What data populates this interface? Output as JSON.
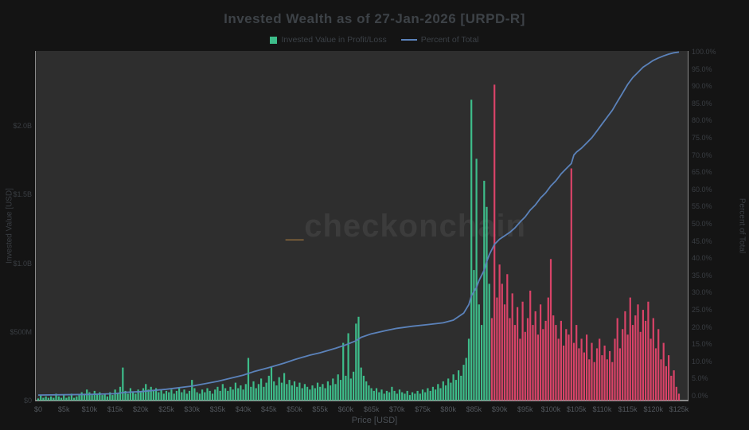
{
  "title": "Invested Wealth as of 27-Jan-2026 [URPD-R]",
  "legend": {
    "profit": {
      "label": "Invested Value in Profit/Loss",
      "color": "#3dbd8a"
    },
    "percent": {
      "label": "Percent of Total",
      "color": "#5b82ba"
    }
  },
  "watermark": {
    "underscore": "_",
    "text": "checkonchain",
    "underscore_color": "#8a683b"
  },
  "colors": {
    "page_bg": "#141414",
    "plot_bg": "#2e2e2e",
    "profit_green": "#3dbd8a",
    "loss_red": "#d94368",
    "percent_blue": "#5b82ba",
    "axis_line": "#8a8a8a"
  },
  "axes": {
    "left": {
      "title": "Invested Value [USD]",
      "ticks": [
        {
          "label": "$2.0B",
          "v": 2.0
        },
        {
          "label": "$1.5B",
          "v": 1.5
        },
        {
          "label": "$1.0B",
          "v": 1.0
        },
        {
          "label": "$500M",
          "v": 0.5
        },
        {
          "label": "$0",
          "v": 0.0
        }
      ]
    },
    "right": {
      "title": "Percent of Total",
      "ticks": [
        "100.0%",
        "95.0%",
        "90.0%",
        "85.0%",
        "80.0%",
        "75.0%",
        "70.0%",
        "65.0%",
        "60.0%",
        "55.0%",
        "50.0%",
        "45.0%",
        "40.0%",
        "35.0%",
        "30.0%",
        "25.0%",
        "20.0%",
        "15.0%",
        "10.0%",
        "5.0%",
        "0.0%"
      ]
    },
    "x": {
      "title": "Price [USD]",
      "ticks": [
        "$0",
        "$5k",
        "$10k",
        "$15k",
        "$20k",
        "$25k",
        "$30k",
        "$35k",
        "$40k",
        "$45k",
        "$50k",
        "$55k",
        "$60k",
        "$65k",
        "$70k",
        "$75k",
        "$80k",
        "$85k",
        "$90k",
        "$95k",
        "$100k",
        "$105k",
        "$110k",
        "$115k",
        "$120k",
        "$125k"
      ],
      "tick_step_k": 5
    }
  },
  "chart_data": {
    "type": "bar+line",
    "xlabel": "Price [USD]",
    "ylabel_left": "Invested Value [USD]",
    "ylabel_right": "Percent of Total",
    "x_range_k": [
      0,
      125.5
    ],
    "ylim_left_B": [
      0,
      2.55
    ],
    "ylim_right_pct": [
      0,
      101
    ],
    "bar_step_k": 0.5,
    "bar_start_k": 0,
    "boundary_price_k": 88.2,
    "profit_color": "#3dbd8a",
    "loss_color": "#d94368",
    "line_color": "#5b82ba",
    "bar_values_B": [
      0.015,
      0.04,
      0.02,
      0.03,
      0.02,
      0.03,
      0.02,
      0.05,
      0.03,
      0.02,
      0.04,
      0.02,
      0.03,
      0.05,
      0.02,
      0.03,
      0.04,
      0.06,
      0.05,
      0.08,
      0.06,
      0.04,
      0.07,
      0.05,
      0.06,
      0.04,
      0.05,
      0.03,
      0.06,
      0.04,
      0.08,
      0.05,
      0.1,
      0.24,
      0.07,
      0.05,
      0.09,
      0.06,
      0.05,
      0.08,
      0.06,
      0.09,
      0.12,
      0.08,
      0.1,
      0.07,
      0.09,
      0.06,
      0.08,
      0.05,
      0.07,
      0.06,
      0.08,
      0.05,
      0.07,
      0.09,
      0.06,
      0.08,
      0.05,
      0.07,
      0.15,
      0.09,
      0.06,
      0.05,
      0.08,
      0.06,
      0.09,
      0.07,
      0.05,
      0.08,
      0.1,
      0.07,
      0.12,
      0.09,
      0.07,
      0.1,
      0.08,
      0.13,
      0.09,
      0.11,
      0.08,
      0.12,
      0.31,
      0.1,
      0.14,
      0.09,
      0.12,
      0.16,
      0.1,
      0.13,
      0.18,
      0.25,
      0.14,
      0.11,
      0.17,
      0.13,
      0.2,
      0.12,
      0.15,
      0.11,
      0.14,
      0.1,
      0.13,
      0.09,
      0.12,
      0.1,
      0.08,
      0.11,
      0.09,
      0.13,
      0.1,
      0.12,
      0.09,
      0.14,
      0.11,
      0.16,
      0.12,
      0.19,
      0.15,
      0.42,
      0.18,
      0.49,
      0.16,
      0.21,
      0.56,
      0.61,
      0.24,
      0.18,
      0.14,
      0.11,
      0.09,
      0.07,
      0.09,
      0.06,
      0.08,
      0.05,
      0.07,
      0.06,
      0.1,
      0.07,
      0.05,
      0.08,
      0.06,
      0.05,
      0.07,
      0.04,
      0.06,
      0.05,
      0.07,
      0.05,
      0.08,
      0.06,
      0.09,
      0.07,
      0.1,
      0.08,
      0.12,
      0.09,
      0.14,
      0.11,
      0.16,
      0.13,
      0.19,
      0.15,
      0.22,
      0.18,
      0.26,
      0.31,
      0.45,
      2.19,
      0.95,
      1.76,
      0.7,
      0.55,
      1.6,
      1.41,
      0.85,
      0.6,
      2.3,
      0.75,
      0.99,
      0.85,
      0.7,
      0.92,
      0.6,
      0.78,
      0.55,
      0.68,
      0.45,
      0.72,
      0.5,
      0.6,
      0.8,
      0.55,
      0.65,
      0.48,
      0.7,
      0.52,
      0.58,
      0.75,
      1.03,
      0.62,
      0.55,
      0.45,
      0.58,
      0.4,
      0.52,
      0.48,
      1.69,
      0.42,
      0.55,
      0.38,
      0.45,
      0.35,
      0.48,
      0.3,
      0.42,
      0.28,
      0.38,
      0.45,
      0.33,
      0.4,
      0.3,
      0.36,
      0.28,
      0.45,
      0.6,
      0.38,
      0.52,
      0.65,
      0.48,
      0.75,
      0.55,
      0.62,
      0.7,
      0.5,
      0.66,
      0.58,
      0.72,
      0.45,
      0.6,
      0.38,
      0.52,
      0.3,
      0.42,
      0.25,
      0.33,
      0.18,
      0.22,
      0.1,
      0.05
    ],
    "percent_line_points": [
      [
        0,
        0.2
      ],
      [
        5,
        0.3
      ],
      [
        10,
        0.4
      ],
      [
        15,
        0.6
      ],
      [
        17,
        1.0
      ],
      [
        20,
        1.2
      ],
      [
        25,
        1.9
      ],
      [
        30,
        2.8
      ],
      [
        35,
        4.2
      ],
      [
        40,
        6.0
      ],
      [
        42,
        7.0
      ],
      [
        45,
        8.2
      ],
      [
        48,
        9.5
      ],
      [
        50,
        10.5
      ],
      [
        53,
        11.8
      ],
      [
        55,
        12.5
      ],
      [
        58,
        13.8
      ],
      [
        60,
        14.8
      ],
      [
        62,
        16.0
      ],
      [
        63,
        17.0
      ],
      [
        65,
        18.0
      ],
      [
        68,
        19.0
      ],
      [
        70,
        19.6
      ],
      [
        73,
        20.2
      ],
      [
        76,
        20.7
      ],
      [
        79,
        21.2
      ],
      [
        81,
        22.0
      ],
      [
        83,
        24.0
      ],
      [
        84,
        26.5
      ],
      [
        84.5,
        29.0
      ],
      [
        85.5,
        31.5
      ],
      [
        86,
        33.5
      ],
      [
        87,
        36.5
      ],
      [
        87.5,
        39.0
      ],
      [
        88,
        41.0
      ],
      [
        89,
        44.0
      ],
      [
        90,
        45.5
      ],
      [
        91,
        46.5
      ],
      [
        92,
        47.5
      ],
      [
        93,
        48.8
      ],
      [
        94,
        50.5
      ],
      [
        95,
        52.0
      ],
      [
        96,
        54.0
      ],
      [
        97,
        55.5
      ],
      [
        98,
        57.5
      ],
      [
        99,
        59.0
      ],
      [
        100,
        61.0
      ],
      [
        101,
        62.5
      ],
      [
        102,
        64.5
      ],
      [
        103,
        66.0
      ],
      [
        104,
        67.5
      ],
      [
        104.5,
        70.0
      ],
      [
        105,
        70.8
      ],
      [
        106,
        72.0
      ],
      [
        107,
        73.5
      ],
      [
        108,
        75.0
      ],
      [
        109,
        77.0
      ],
      [
        110,
        79.0
      ],
      [
        111,
        81.0
      ],
      [
        112,
        83.0
      ],
      [
        113,
        85.5
      ],
      [
        114,
        88.0
      ],
      [
        115,
        90.5
      ],
      [
        116,
        92.5
      ],
      [
        117,
        94.0
      ],
      [
        118,
        95.5
      ],
      [
        119,
        96.5
      ],
      [
        120,
        97.5
      ],
      [
        121,
        98.2
      ],
      [
        122,
        98.8
      ],
      [
        123,
        99.3
      ],
      [
        124,
        99.7
      ],
      [
        125,
        99.9
      ]
    ]
  }
}
